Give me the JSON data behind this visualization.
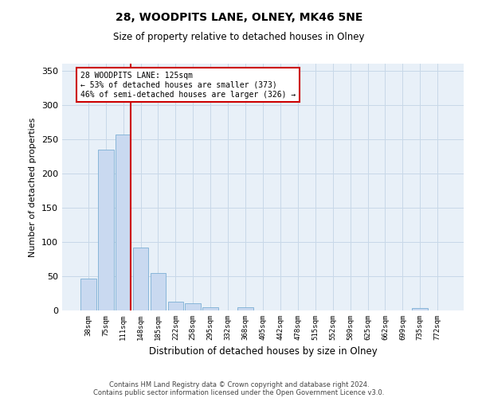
{
  "title1": "28, WOODPITS LANE, OLNEY, MK46 5NE",
  "title2": "Size of property relative to detached houses in Olney",
  "xlabel": "Distribution of detached houses by size in Olney",
  "ylabel": "Number of detached properties",
  "annotation_line1": "28 WOODPITS LANE: 125sqm",
  "annotation_line2": "← 53% of detached houses are smaller (373)",
  "annotation_line3": "46% of semi-detached houses are larger (326) →",
  "footer1": "Contains HM Land Registry data © Crown copyright and database right 2024.",
  "footer2": "Contains public sector information licensed under the Open Government Licence v3.0.",
  "bar_labels": [
    "38sqm",
    "75sqm",
    "111sqm",
    "148sqm",
    "185sqm",
    "222sqm",
    "258sqm",
    "295sqm",
    "332sqm",
    "368sqm",
    "405sqm",
    "442sqm",
    "478sqm",
    "515sqm",
    "552sqm",
    "589sqm",
    "625sqm",
    "662sqm",
    "699sqm",
    "735sqm",
    "772sqm"
  ],
  "bar_values": [
    47,
    235,
    257,
    92,
    55,
    13,
    10,
    5,
    0,
    5,
    0,
    0,
    0,
    0,
    0,
    0,
    0,
    0,
    0,
    3,
    0
  ],
  "bar_color": "#c9d9f0",
  "bar_edgecolor": "#7bafd4",
  "redline_x": 2.42,
  "ylim": [
    0,
    360
  ],
  "yticks": [
    0,
    50,
    100,
    150,
    200,
    250,
    300,
    350
  ],
  "annotation_box_color": "#ffffff",
  "annotation_box_edgecolor": "#cc0000",
  "redline_color": "#cc0000",
  "grid_color": "#c8d8e8",
  "background_color": "#e8f0f8",
  "fig_width": 6.0,
  "fig_height": 5.0,
  "dpi": 100
}
